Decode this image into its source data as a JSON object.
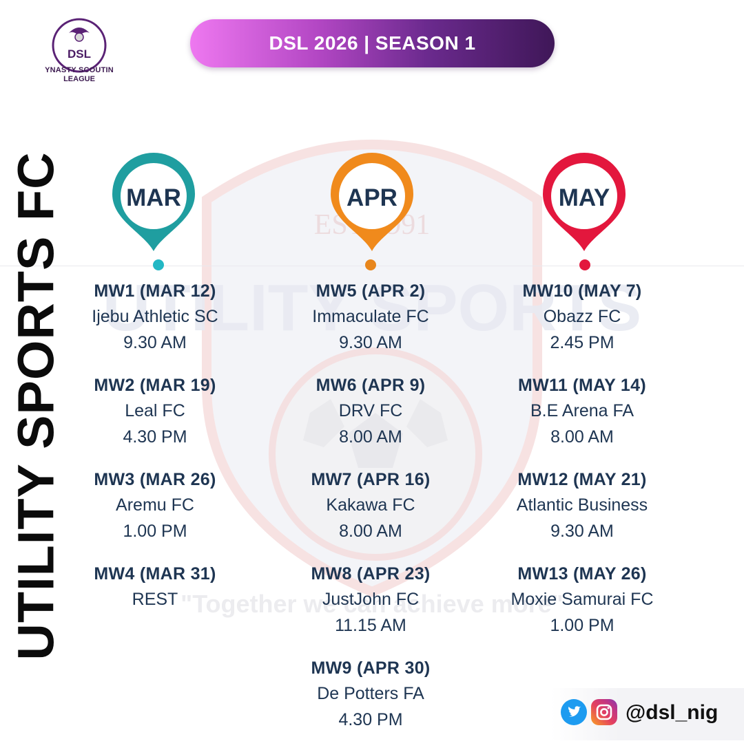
{
  "logo": {
    "abbr": "DSL",
    "name_line1": "YNASTY SCOUTIN",
    "name_line2": "LEAGUE"
  },
  "banner": {
    "title": "DSL 2026 | SEASON 1"
  },
  "club": {
    "name": "UTILITY SPORTS FC"
  },
  "watermark": {
    "motto": "\"Together we can achieve more\""
  },
  "months": [
    {
      "label": "MAR",
      "color": "#1f9ea0",
      "dot": "#22b7c4"
    },
    {
      "label": "APR",
      "color": "#f08a1c",
      "dot": "#e8861c"
    },
    {
      "label": "MAY",
      "color": "#e3173d",
      "dot": "#e3173d"
    }
  ],
  "columns": [
    [
      {
        "mw": "MW1 (MAR 12)",
        "opponent": "Ijebu Athletic SC",
        "time": "9.30 AM"
      },
      {
        "mw": "MW2 (MAR 19)",
        "opponent": "Leal FC",
        "time": "4.30 PM"
      },
      {
        "mw": "MW3 (MAR 26)",
        "opponent": "Aremu FC",
        "time": "1.00 PM"
      },
      {
        "mw": "MW4 (MAR 31)",
        "opponent": "REST",
        "time": ""
      }
    ],
    [
      {
        "mw": "MW5 (APR 2)",
        "opponent": "Immaculate FC",
        "time": "9.30 AM"
      },
      {
        "mw": "MW6 (APR 9)",
        "opponent": "DRV FC",
        "time": "8.00 AM"
      },
      {
        "mw": "MW7 (APR 16)",
        "opponent": "Kakawa FC",
        "time": "8.00 AM"
      },
      {
        "mw": "MW8 (APR 23)",
        "opponent": "JustJohn FC",
        "time": "11.15 AM"
      },
      {
        "mw": "MW9 (APR 30)",
        "opponent": "De Potters FA",
        "time": "4.30 PM"
      }
    ],
    [
      {
        "mw": "MW10 (MAY 7)",
        "opponent": "Obazz FC",
        "time": "2.45 PM"
      },
      {
        "mw": "MW11 (MAY 14)",
        "opponent": "B.E Arena FA",
        "time": "8.00 AM"
      },
      {
        "mw": "MW12 (MAY 21)",
        "opponent": "Atlantic Business",
        "time": "9.30 AM"
      },
      {
        "mw": "MW13 (MAY 26)",
        "opponent": "Moxie Samurai FC",
        "time": "1.00 PM"
      }
    ]
  ],
  "social": {
    "handle": "@dsl_nig",
    "icons": [
      "twitter-icon",
      "instagram-icon"
    ]
  }
}
